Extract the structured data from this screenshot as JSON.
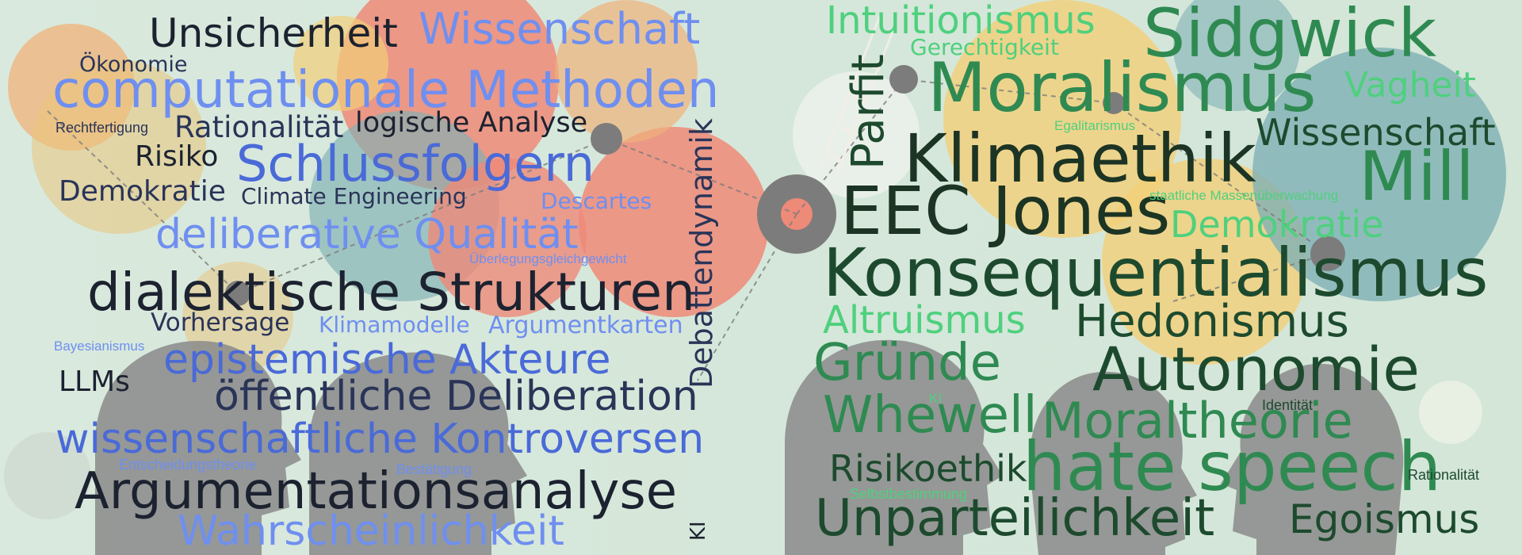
{
  "left_cloud": {
    "unsicherheit": "Unsicherheit",
    "wissenschaft": "Wissenschaft",
    "oekonomie": "Ökonomie",
    "computationale_methoden": "computationale Methoden",
    "rechtfertigung": "Rechtfertigung",
    "rationalitaet": "Rationalität",
    "logische_analyse": "logische Analyse",
    "risiko": "Risiko",
    "schlussfolgern": "Schlussfolgern",
    "demokratie": "Demokratie",
    "climate_engineering": "Climate Engineering",
    "descartes": "Descartes",
    "deliberative_qualitaet": "deliberative Qualität",
    "ueberlegungsgleichgewicht": "Überlegungsgleichgewicht",
    "debattendynamik": "Debattendynamik",
    "dialektische_strukturen": "dialektische Strukturen",
    "vorhersage": "Vorhersage",
    "klimamodelle": "Klimamodelle",
    "argumentkarten": "Argumentkarten",
    "bayesianismus": "Bayesianismus",
    "epistemische_akteure": "epistemische Akteure",
    "llms": "LLMs",
    "oeffentliche_deliberation": "öffentliche Deliberation",
    "wissenschaftliche_kontroversen": "wissenschaftliche Kontroversen",
    "entscheidungstheorie": "Entscheidungstheorie",
    "bestaetigung": "Bestätigung",
    "argumentationsanalyse": "Argumentationsanalyse",
    "wahrscheinlichkeit": "Wahrscheinlichkeit",
    "ki": "KI"
  },
  "right_cloud": {
    "intuitionismus": "Intuitionismus",
    "gerechtigkeit": "Gerechtigkeit",
    "sidgwick": "Sidgwick",
    "parfit": "Parfit",
    "moralismus": "Moralismus",
    "vagheit": "Vagheit",
    "egalitarismus": "Egalitarismus",
    "wissenschaft": "Wissenschaft",
    "klimaethik": "Klimaethik",
    "mill": "Mill",
    "eec_jones": "EEC Jones",
    "staatliche_massenueberwachung": "staatliche Massenüberwachung",
    "demokratie": "Demokratie",
    "konsequentialismus": "Konsequentialismus",
    "altruismus": "Altruismus",
    "hedonismus": "Hedonismus",
    "gruende": "Gründe",
    "autonomie": "Autonomie",
    "ki": "KI",
    "identitaet": "Identität",
    "whewell": "Whewell",
    "moraltheorie": "Moraltheorie",
    "risikoethik": "Risikoethik",
    "hate_speech": "hate speech",
    "rationalitaet": "Rationalität",
    "selbstbestimmung": "Selbstbestimmung",
    "unparteilichkeit": "Unparteilichkeit",
    "egoismus": "Egoismus"
  },
  "colors": {
    "background": "#d6e8dc",
    "light_blue": "#6f8ff0",
    "mid_blue": "#4a6ad8",
    "navy": "#2a3458",
    "dark": "#1c2230",
    "dark_green": "#1d4a2e",
    "mid_green": "#2f8a52",
    "light_green": "#4fd07e",
    "gear_orange": "#f0b27a",
    "gear_red": "#ee8a78",
    "gear_teal": "#7fb0b4",
    "gear_yellow": "#f2cf78",
    "head_grey": "#8a8a8a"
  },
  "icons": [
    "gear-icon",
    "head-silhouette-icon",
    "speech-bubble-icon",
    "network-node-icon",
    "ladder-icon"
  ]
}
